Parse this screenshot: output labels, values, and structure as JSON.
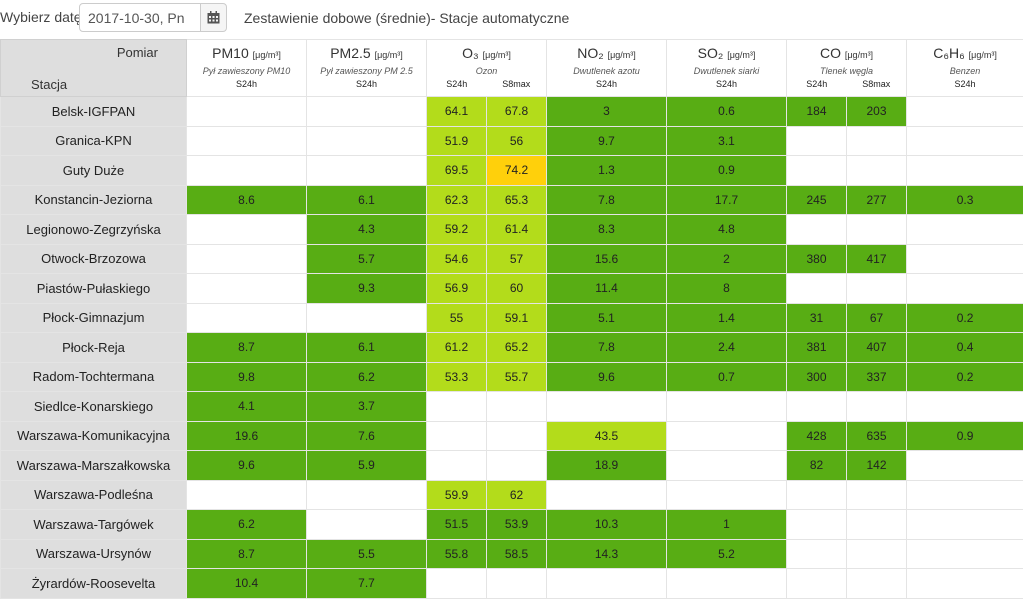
{
  "date_picker": {
    "label": "Wybierz datę:",
    "value": "2017-10-30, Pn",
    "icon": "calendar-icon"
  },
  "title": "Zestawienie dobowe (średnie)- Stacje automatyczne",
  "header": {
    "measure_label": "Pomiar",
    "station_label": "Stacja"
  },
  "colors": {
    "green": "#58ad14",
    "light_green": "#b3dc1b",
    "yellow": "#ffd00b",
    "station_bg": "#dedede"
  },
  "pollutants": [
    {
      "key": "pm10",
      "name": "PM10",
      "unit": "[μg/m³]",
      "desc": "Pył zawieszony PM10",
      "stats": [
        "S24h"
      ]
    },
    {
      "key": "pm25",
      "name": "PM2.5",
      "unit": "[μg/m³]",
      "desc": "Pył zawieszony PM 2.5",
      "stats": [
        "S24h"
      ]
    },
    {
      "key": "o3",
      "name": "O₃",
      "unit": "[μg/m³]",
      "desc": "Ozon",
      "stats": [
        "S24h",
        "S8max"
      ]
    },
    {
      "key": "no2",
      "name": "NO₂",
      "unit": "[μg/m³]",
      "desc": "Dwutlenek azotu",
      "stats": [
        "S24h"
      ]
    },
    {
      "key": "so2",
      "name": "SO₂",
      "unit": "[μg/m³]",
      "desc": "Dwutlenek siarki",
      "stats": [
        "S24h"
      ]
    },
    {
      "key": "co",
      "name": "CO",
      "unit": "[μg/m³]",
      "desc": "Tlenek węgla",
      "stats": [
        "S24h",
        "S8max"
      ]
    },
    {
      "key": "c6h6",
      "name": "C₆H₆",
      "unit": "[μg/m³]",
      "desc": "Benzen",
      "stats": [
        "S24h"
      ]
    }
  ],
  "rows": [
    {
      "station": "Belsk-IGFPAN",
      "cells": [
        {
          "v": ""
        },
        {
          "v": ""
        },
        {
          "v": "64.1",
          "c": "l"
        },
        {
          "v": "67.8",
          "c": "l"
        },
        {
          "v": "3",
          "c": "g"
        },
        {
          "v": "0.6",
          "c": "g"
        },
        {
          "v": "184",
          "c": "g"
        },
        {
          "v": "203",
          "c": "g"
        },
        {
          "v": ""
        }
      ]
    },
    {
      "station": "Granica-KPN",
      "cells": [
        {
          "v": ""
        },
        {
          "v": ""
        },
        {
          "v": "51.9",
          "c": "l"
        },
        {
          "v": "56",
          "c": "l"
        },
        {
          "v": "9.7",
          "c": "g"
        },
        {
          "v": "3.1",
          "c": "g"
        },
        {
          "v": ""
        },
        {
          "v": ""
        },
        {
          "v": ""
        }
      ]
    },
    {
      "station": "Guty Duże",
      "cells": [
        {
          "v": ""
        },
        {
          "v": ""
        },
        {
          "v": "69.5",
          "c": "l"
        },
        {
          "v": "74.2",
          "c": "y"
        },
        {
          "v": "1.3",
          "c": "g"
        },
        {
          "v": "0.9",
          "c": "g"
        },
        {
          "v": ""
        },
        {
          "v": ""
        },
        {
          "v": ""
        }
      ]
    },
    {
      "station": "Konstancin-Jeziorna",
      "cells": [
        {
          "v": "8.6",
          "c": "g"
        },
        {
          "v": "6.1",
          "c": "g"
        },
        {
          "v": "62.3",
          "c": "l"
        },
        {
          "v": "65.3",
          "c": "l"
        },
        {
          "v": "7.8",
          "c": "g"
        },
        {
          "v": "17.7",
          "c": "g"
        },
        {
          "v": "245",
          "c": "g"
        },
        {
          "v": "277",
          "c": "g"
        },
        {
          "v": "0.3",
          "c": "g"
        }
      ]
    },
    {
      "station": "Legionowo-Zegrzyńska",
      "cells": [
        {
          "v": ""
        },
        {
          "v": "4.3",
          "c": "g"
        },
        {
          "v": "59.2",
          "c": "l"
        },
        {
          "v": "61.4",
          "c": "l"
        },
        {
          "v": "8.3",
          "c": "g"
        },
        {
          "v": "4.8",
          "c": "g"
        },
        {
          "v": ""
        },
        {
          "v": ""
        },
        {
          "v": ""
        }
      ]
    },
    {
      "station": "Otwock-Brzozowa",
      "cells": [
        {
          "v": ""
        },
        {
          "v": "5.7",
          "c": "g"
        },
        {
          "v": "54.6",
          "c": "l"
        },
        {
          "v": "57",
          "c": "l"
        },
        {
          "v": "15.6",
          "c": "g"
        },
        {
          "v": "2",
          "c": "g"
        },
        {
          "v": "380",
          "c": "g"
        },
        {
          "v": "417",
          "c": "g"
        },
        {
          "v": ""
        }
      ]
    },
    {
      "station": "Piastów-Pułaskiego",
      "cells": [
        {
          "v": ""
        },
        {
          "v": "9.3",
          "c": "g"
        },
        {
          "v": "56.9",
          "c": "l"
        },
        {
          "v": "60",
          "c": "l"
        },
        {
          "v": "11.4",
          "c": "g"
        },
        {
          "v": "8",
          "c": "g"
        },
        {
          "v": ""
        },
        {
          "v": ""
        },
        {
          "v": ""
        }
      ]
    },
    {
      "station": "Płock-Gimnazjum",
      "cells": [
        {
          "v": ""
        },
        {
          "v": ""
        },
        {
          "v": "55",
          "c": "l"
        },
        {
          "v": "59.1",
          "c": "l"
        },
        {
          "v": "5.1",
          "c": "g"
        },
        {
          "v": "1.4",
          "c": "g"
        },
        {
          "v": "31",
          "c": "g"
        },
        {
          "v": "67",
          "c": "g"
        },
        {
          "v": "0.2",
          "c": "g"
        }
      ]
    },
    {
      "station": "Płock-Reja",
      "cells": [
        {
          "v": "8.7",
          "c": "g"
        },
        {
          "v": "6.1",
          "c": "g"
        },
        {
          "v": "61.2",
          "c": "l"
        },
        {
          "v": "65.2",
          "c": "l"
        },
        {
          "v": "7.8",
          "c": "g"
        },
        {
          "v": "2.4",
          "c": "g"
        },
        {
          "v": "381",
          "c": "g"
        },
        {
          "v": "407",
          "c": "g"
        },
        {
          "v": "0.4",
          "c": "g"
        }
      ]
    },
    {
      "station": "Radom-Tochtermana",
      "cells": [
        {
          "v": "9.8",
          "c": "g"
        },
        {
          "v": "6.2",
          "c": "g"
        },
        {
          "v": "53.3",
          "c": "l"
        },
        {
          "v": "55.7",
          "c": "l"
        },
        {
          "v": "9.6",
          "c": "g"
        },
        {
          "v": "0.7",
          "c": "g"
        },
        {
          "v": "300",
          "c": "g"
        },
        {
          "v": "337",
          "c": "g"
        },
        {
          "v": "0.2",
          "c": "g"
        }
      ]
    },
    {
      "station": "Siedlce-Konarskiego",
      "cells": [
        {
          "v": "4.1",
          "c": "g"
        },
        {
          "v": "3.7",
          "c": "g"
        },
        {
          "v": ""
        },
        {
          "v": ""
        },
        {
          "v": ""
        },
        {
          "v": ""
        },
        {
          "v": ""
        },
        {
          "v": ""
        },
        {
          "v": ""
        }
      ]
    },
    {
      "station": "Warszawa-Komunikacyjna",
      "cells": [
        {
          "v": "19.6",
          "c": "g"
        },
        {
          "v": "7.6",
          "c": "g"
        },
        {
          "v": ""
        },
        {
          "v": ""
        },
        {
          "v": "43.5",
          "c": "l"
        },
        {
          "v": ""
        },
        {
          "v": "428",
          "c": "g"
        },
        {
          "v": "635",
          "c": "g"
        },
        {
          "v": "0.9",
          "c": "g"
        }
      ]
    },
    {
      "station": "Warszawa-Marszałkowska",
      "cells": [
        {
          "v": "9.6",
          "c": "g"
        },
        {
          "v": "5.9",
          "c": "g"
        },
        {
          "v": ""
        },
        {
          "v": ""
        },
        {
          "v": "18.9",
          "c": "g"
        },
        {
          "v": ""
        },
        {
          "v": "82",
          "c": "g"
        },
        {
          "v": "142",
          "c": "g"
        },
        {
          "v": ""
        }
      ]
    },
    {
      "station": "Warszawa-Podleśna",
      "cells": [
        {
          "v": ""
        },
        {
          "v": ""
        },
        {
          "v": "59.9",
          "c": "l"
        },
        {
          "v": "62",
          "c": "l"
        },
        {
          "v": ""
        },
        {
          "v": ""
        },
        {
          "v": ""
        },
        {
          "v": ""
        },
        {
          "v": ""
        }
      ]
    },
    {
      "station": "Warszawa-Targówek",
      "cells": [
        {
          "v": "6.2",
          "c": "g"
        },
        {
          "v": ""
        },
        {
          "v": "51.5",
          "c": "g"
        },
        {
          "v": "53.9",
          "c": "g"
        },
        {
          "v": "10.3",
          "c": "g"
        },
        {
          "v": "1",
          "c": "g"
        },
        {
          "v": ""
        },
        {
          "v": ""
        },
        {
          "v": ""
        }
      ]
    },
    {
      "station": "Warszawa-Ursynów",
      "cells": [
        {
          "v": "8.7",
          "c": "g"
        },
        {
          "v": "5.5",
          "c": "g"
        },
        {
          "v": "55.8",
          "c": "g"
        },
        {
          "v": "58.5",
          "c": "g"
        },
        {
          "v": "14.3",
          "c": "g"
        },
        {
          "v": "5.2",
          "c": "g"
        },
        {
          "v": ""
        },
        {
          "v": ""
        },
        {
          "v": ""
        }
      ]
    },
    {
      "station": "Żyrardów-Roosevelta",
      "cells": [
        {
          "v": "10.4",
          "c": "g"
        },
        {
          "v": "7.7",
          "c": "g"
        },
        {
          "v": ""
        },
        {
          "v": ""
        },
        {
          "v": ""
        },
        {
          "v": ""
        },
        {
          "v": ""
        },
        {
          "v": ""
        },
        {
          "v": ""
        }
      ]
    }
  ]
}
